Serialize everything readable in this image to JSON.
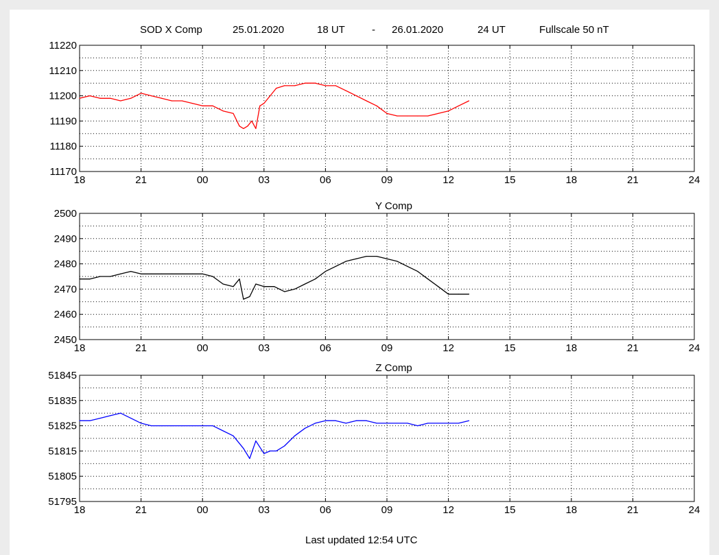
{
  "header": {
    "station_comp": "SOD X Comp",
    "start_date": "25.01.2020",
    "start_hour": "18 UT",
    "separator": "-",
    "end_date": "26.01.2020",
    "end_hour": "24 UT",
    "fullscale": "Fullscale 50 nT"
  },
  "footer": {
    "last_updated": "Last updated  12:54 UTC"
  },
  "chart_data": [
    {
      "type": "line",
      "title": "",
      "xlabel": "",
      "ylabel": "",
      "x_ticks": [
        "18",
        "21",
        "00",
        "03",
        "06",
        "09",
        "12",
        "15",
        "18",
        "21",
        "24"
      ],
      "xlim": [
        0,
        30
      ],
      "ylim": [
        11170,
        11220
      ],
      "y_ticks": [
        11220,
        11210,
        11200,
        11190,
        11180,
        11170
      ],
      "grid": true,
      "color": "#ff0000",
      "x": [
        0,
        0.5,
        1,
        1.5,
        2,
        2.5,
        3,
        3.5,
        4,
        4.5,
        5,
        5.5,
        6,
        6.5,
        7,
        7.5,
        7.8,
        8.0,
        8.2,
        8.4,
        8.6,
        8.8,
        9.0,
        9.3,
        9.6,
        10,
        10.5,
        11,
        11.5,
        12,
        12.5,
        13,
        13.5,
        14,
        14.5,
        15,
        15.5,
        16,
        16.5,
        17,
        17.5,
        18,
        18.5,
        19
      ],
      "values": [
        11199,
        11200,
        11199,
        11199,
        11198,
        11199,
        11201,
        11200,
        11199,
        11198,
        11198,
        11197,
        11196,
        11196,
        11194,
        11193,
        11188,
        11187,
        11188,
        11190,
        11187,
        11196,
        11197,
        11200,
        11203,
        11204,
        11204,
        11205,
        11205,
        11204,
        11204,
        11202,
        11200,
        11198,
        11196,
        11193,
        11192,
        11192,
        11192,
        11192,
        11193,
        11194,
        11196,
        11198
      ]
    },
    {
      "type": "line",
      "title": "Y Comp",
      "xlabel": "",
      "ylabel": "",
      "x_ticks": [
        "18",
        "21",
        "00",
        "03",
        "06",
        "09",
        "12",
        "15",
        "18",
        "21",
        "24"
      ],
      "xlim": [
        0,
        30
      ],
      "ylim": [
        2450,
        2500
      ],
      "y_ticks": [
        2500,
        2490,
        2480,
        2470,
        2460,
        2450
      ],
      "grid": true,
      "color": "#000000",
      "x": [
        0,
        0.5,
        1,
        1.5,
        2,
        2.5,
        3,
        3.5,
        4,
        4.5,
        5,
        5.5,
        6,
        6.5,
        7,
        7.5,
        7.8,
        8.0,
        8.3,
        8.6,
        9,
        9.5,
        10,
        10.5,
        11,
        11.5,
        12,
        12.5,
        13,
        13.5,
        14,
        14.5,
        15,
        15.5,
        16,
        16.5,
        17,
        17.5,
        18,
        18.5,
        19
      ],
      "values": [
        2474,
        2474,
        2475,
        2475,
        2476,
        2477,
        2476,
        2476,
        2476,
        2476,
        2476,
        2476,
        2476,
        2475,
        2472,
        2471,
        2474,
        2466,
        2467,
        2472,
        2471,
        2471,
        2469,
        2470,
        2472,
        2474,
        2477,
        2479,
        2481,
        2482,
        2483,
        2483,
        2482,
        2481,
        2479,
        2477,
        2474,
        2471,
        2468,
        2468,
        2468
      ]
    },
    {
      "type": "line",
      "title": "Z Comp",
      "xlabel": "",
      "ylabel": "",
      "x_ticks": [
        "18",
        "21",
        "00",
        "03",
        "06",
        "09",
        "12",
        "15",
        "18",
        "21",
        "24"
      ],
      "xlim": [
        0,
        30
      ],
      "ylim": [
        51795,
        51845
      ],
      "y_ticks": [
        51845,
        51835,
        51825,
        51815,
        51805,
        51795
      ],
      "grid": true,
      "color": "#0000ff",
      "x": [
        0,
        0.5,
        1,
        1.5,
        2,
        2.5,
        3,
        3.5,
        4,
        4.5,
        5,
        5.5,
        6,
        6.5,
        7,
        7.5,
        8.0,
        8.3,
        8.6,
        9.0,
        9.3,
        9.6,
        10,
        10.5,
        11,
        11.5,
        12,
        12.5,
        13,
        13.5,
        14,
        14.5,
        15,
        15.5,
        16,
        16.5,
        17,
        17.5,
        18,
        18.5,
        19
      ],
      "values": [
        51827,
        51827,
        51828,
        51829,
        51830,
        51828,
        51826,
        51825,
        51825,
        51825,
        51825,
        51825,
        51825,
        51825,
        51823,
        51821,
        51816,
        51812,
        51819,
        51814,
        51815,
        51815,
        51817,
        51821,
        51824,
        51826,
        51827,
        51827,
        51826,
        51827,
        51827,
        51826,
        51826,
        51826,
        51826,
        51825,
        51826,
        51826,
        51826,
        51826,
        51827
      ]
    }
  ]
}
